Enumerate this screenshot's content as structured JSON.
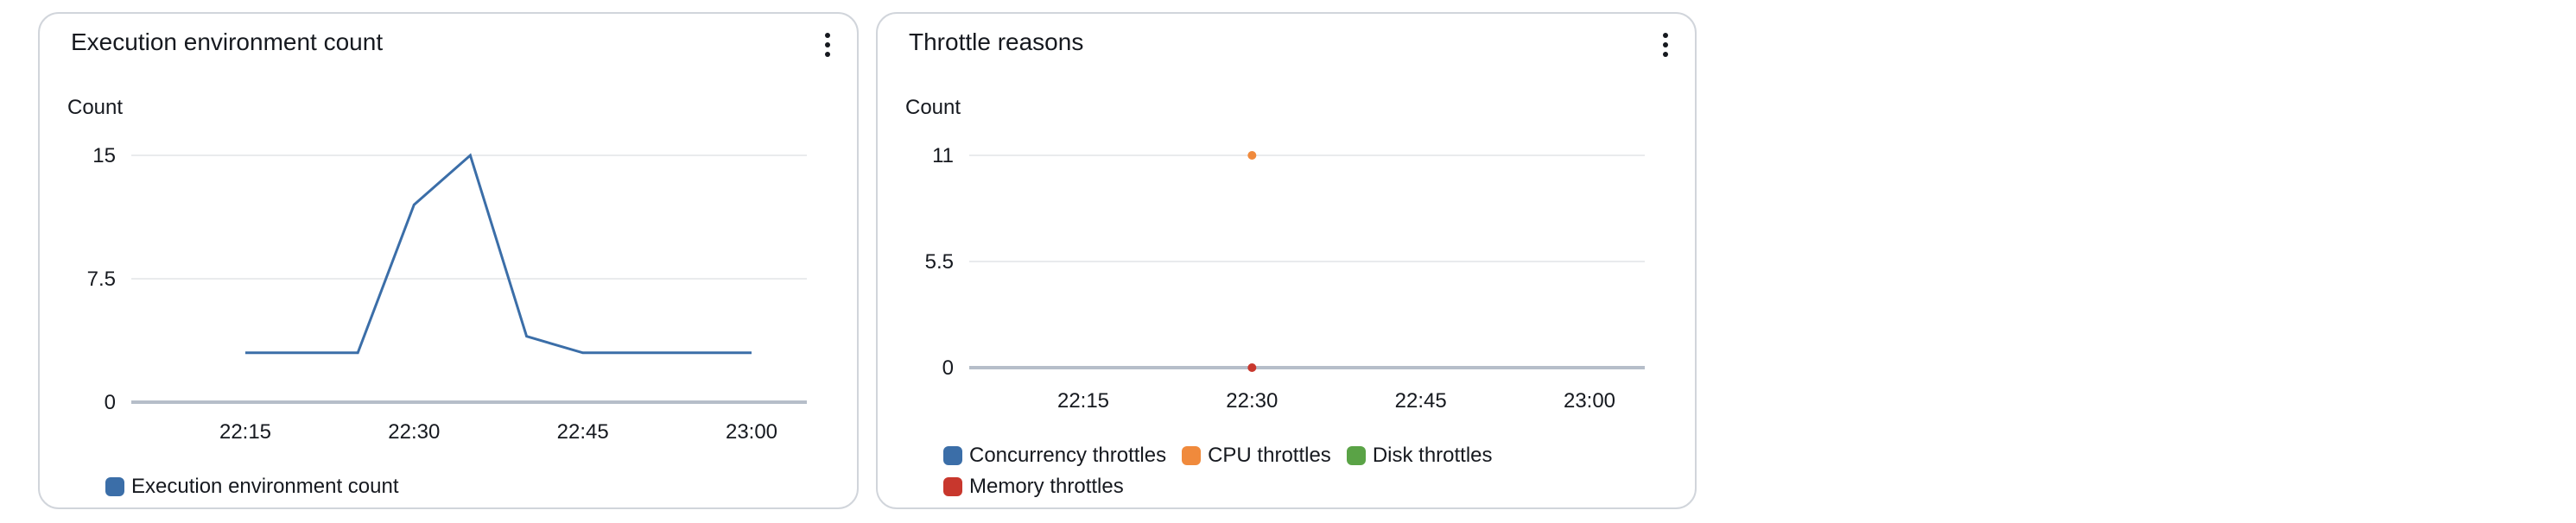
{
  "panels": [
    {
      "title": "Execution environment count",
      "chart_data": {
        "type": "line",
        "title": "Execution environment count",
        "ylabel": "Count",
        "xlabel": "",
        "x_ticks": [
          "22:15",
          "22:30",
          "22:45",
          "23:00"
        ],
        "y_ticks": [
          "0",
          "7.5",
          "15"
        ],
        "ylim": [
          0,
          15
        ],
        "grid": true,
        "legend_position": "bottom-left",
        "series": [
          {
            "name": "Execution environment count",
            "color": "#3b6ea8",
            "x": [
              "22:15",
              "22:20",
              "22:25",
              "22:30",
              "22:35",
              "22:40",
              "22:45",
              "22:50",
              "22:55",
              "23:00"
            ],
            "values": [
              3,
              3,
              3,
              12,
              15,
              4,
              3,
              3,
              3,
              3
            ]
          }
        ]
      }
    },
    {
      "title": "Throttle reasons",
      "chart_data": {
        "type": "scatter",
        "title": "Throttle reasons",
        "ylabel": "Count",
        "xlabel": "",
        "x_ticks": [
          "22:15",
          "22:30",
          "22:45",
          "23:00"
        ],
        "y_ticks": [
          "0",
          "5.5",
          "11"
        ],
        "ylim": [
          0,
          11
        ],
        "grid": true,
        "legend_position": "bottom-left",
        "series": [
          {
            "name": "Concurrency throttles",
            "color": "#3b6ea8",
            "x": [],
            "values": []
          },
          {
            "name": "CPU throttles",
            "color": "#f08a3c",
            "x": [
              "22:30"
            ],
            "values": [
              11
            ]
          },
          {
            "name": "Disk throttles",
            "color": "#5aa346",
            "x": [],
            "values": []
          },
          {
            "name": "Memory throttles",
            "color": "#c8372d",
            "x": [
              "22:30"
            ],
            "values": [
              0
            ]
          }
        ]
      }
    }
  ]
}
